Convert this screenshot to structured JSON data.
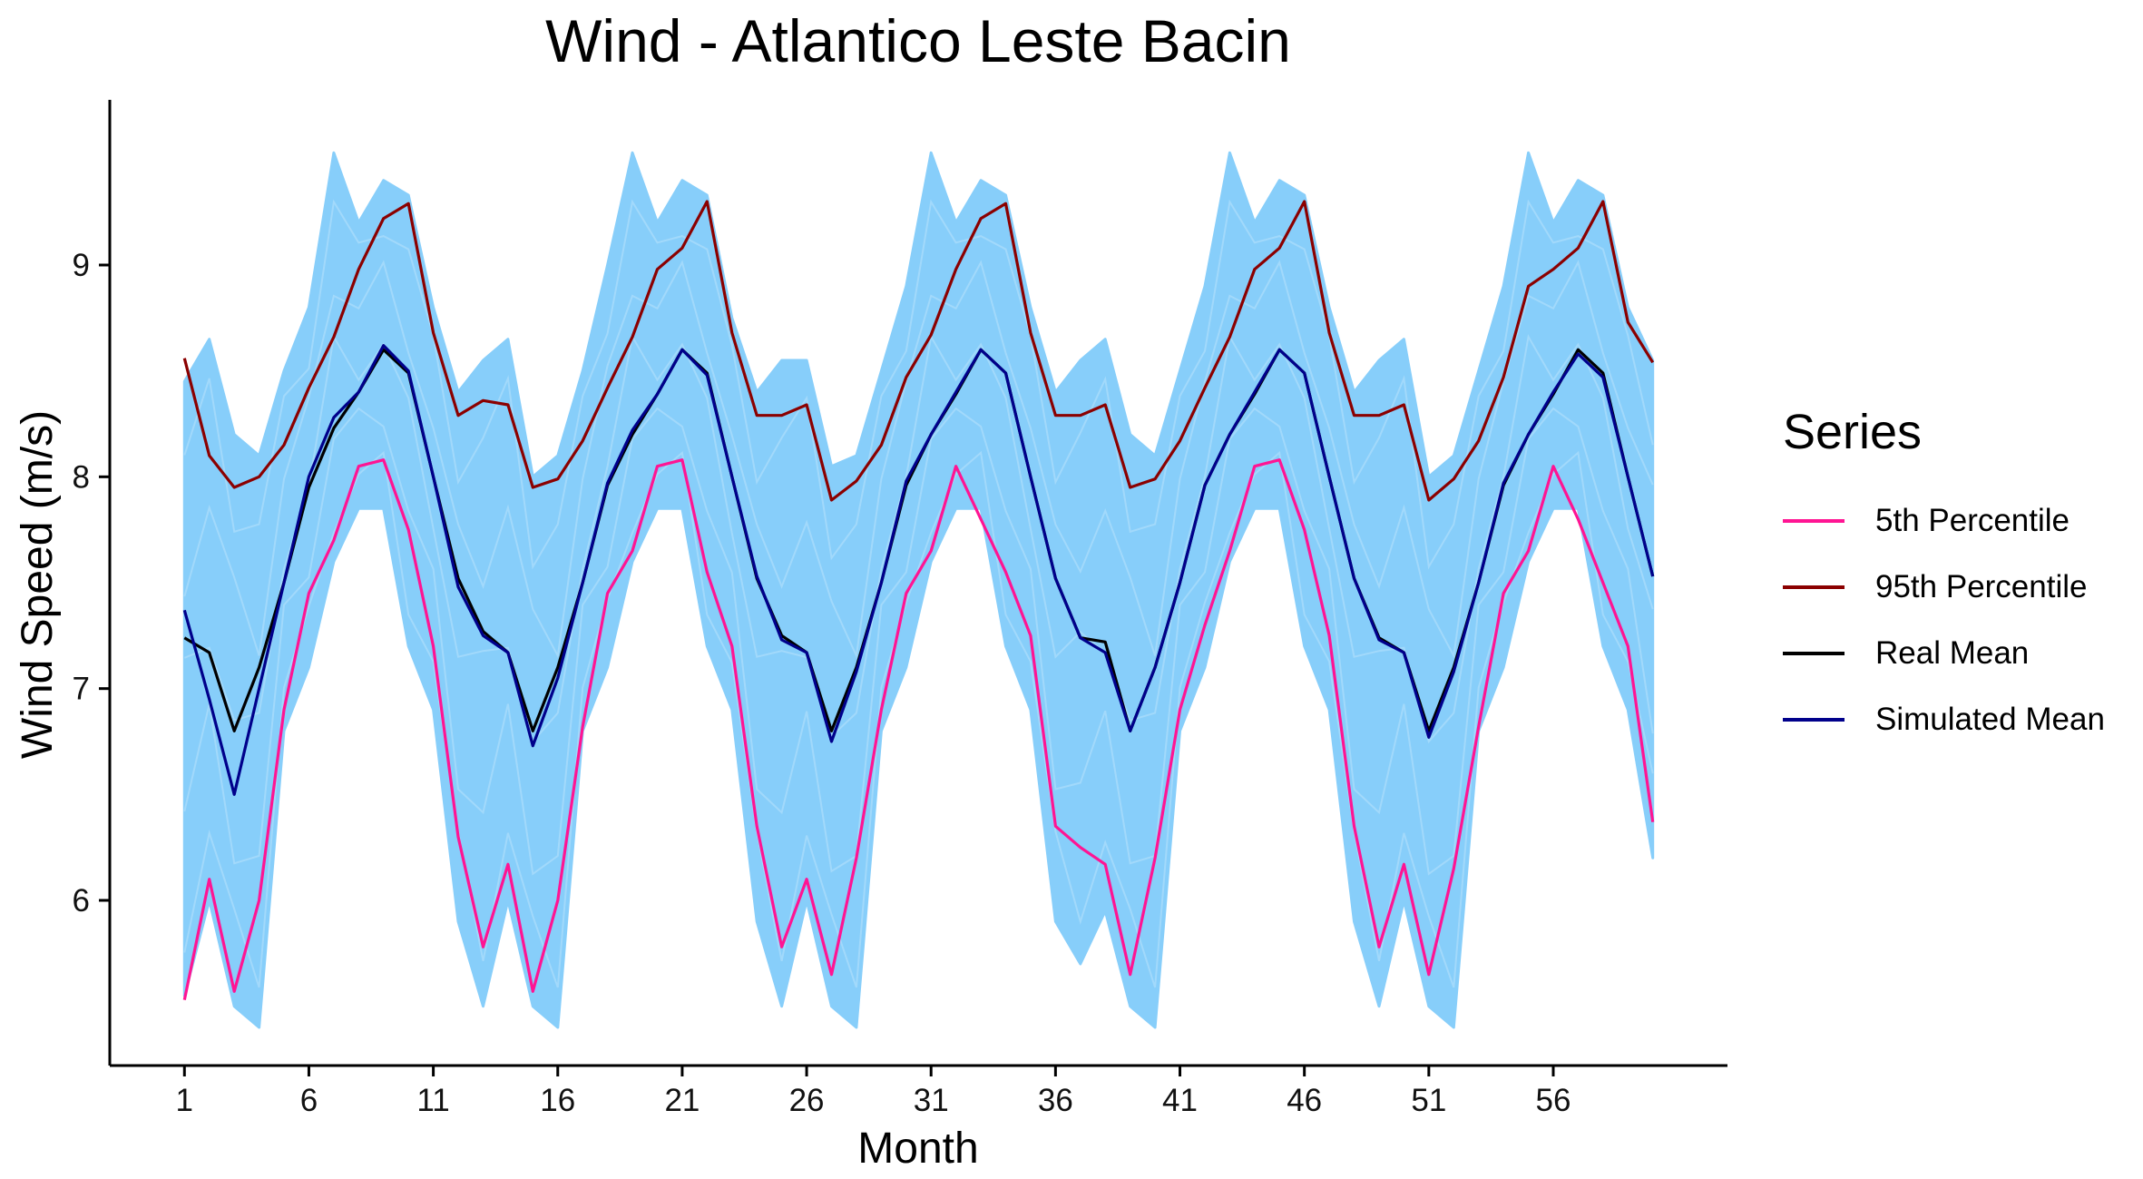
{
  "chart_data": {
    "type": "line",
    "title": "Wind - Atlantico Leste Bacin",
    "xlabel": "Month",
    "ylabel": "Wind Speed (m/s)",
    "xlim": [
      -2,
      63
    ],
    "ylim": [
      5.22,
      9.78
    ],
    "x_ticks": [
      1,
      6,
      11,
      16,
      21,
      26,
      31,
      36,
      41,
      46,
      51,
      56
    ],
    "y_ticks": [
      6,
      7,
      8,
      9
    ],
    "grid": false,
    "legend_position": "right",
    "legend_title": "Series",
    "band": {
      "color": "#87CEFA",
      "description_of_values": "envelope of simulated series",
      "upper": [
        8.45,
        8.65,
        8.2,
        8.1,
        8.5,
        8.8,
        9.53,
        9.2,
        9.4,
        9.33,
        8.8,
        8.4,
        8.55,
        8.65,
        8.0,
        8.1,
        8.5,
        9.0,
        9.53,
        9.2,
        9.4,
        9.33,
        8.75,
        8.4,
        8.55,
        8.55,
        8.05,
        8.1,
        8.5,
        8.9,
        9.53,
        9.2,
        9.4,
        9.33,
        8.8,
        8.4,
        8.55,
        8.65,
        8.2,
        8.1,
        8.5,
        8.9,
        9.53,
        9.2,
        9.4,
        9.33,
        8.8,
        8.4,
        8.55,
        8.65,
        8.0,
        8.1,
        8.5,
        8.9,
        9.53,
        9.2,
        9.4,
        9.33,
        8.8,
        8.55
      ],
      "lower": [
        5.55,
        6.0,
        5.5,
        5.4,
        6.8,
        7.1,
        7.6,
        7.85,
        7.85,
        7.2,
        6.9,
        5.9,
        5.5,
        6.0,
        5.5,
        5.4,
        6.8,
        7.1,
        7.6,
        7.85,
        7.85,
        7.2,
        6.9,
        5.9,
        5.5,
        6.0,
        5.5,
        5.4,
        6.8,
        7.1,
        7.6,
        7.85,
        7.85,
        7.2,
        6.9,
        5.9,
        5.7,
        5.95,
        5.5,
        5.4,
        6.8,
        7.1,
        7.6,
        7.85,
        7.85,
        7.2,
        6.9,
        5.9,
        5.5,
        6.0,
        5.5,
        5.4,
        6.8,
        7.1,
        7.6,
        7.85,
        7.85,
        7.2,
        6.9,
        6.2
      ]
    },
    "x": [
      1,
      2,
      3,
      4,
      5,
      6,
      7,
      8,
      9,
      10,
      11,
      12,
      13,
      14,
      15,
      16,
      17,
      18,
      19,
      20,
      21,
      22,
      23,
      24,
      25,
      26,
      27,
      28,
      29,
      30,
      31,
      32,
      33,
      34,
      35,
      36,
      37,
      38,
      39,
      40,
      41,
      42,
      43,
      44,
      45,
      46,
      47,
      48,
      49,
      50,
      51,
      52,
      53,
      54,
      55,
      56,
      57,
      58,
      59,
      60
    ],
    "series": [
      {
        "name": "5th Percentile",
        "color": "#FF1493",
        "values": [
          5.53,
          6.1,
          5.57,
          6.0,
          6.9,
          7.45,
          7.7,
          8.05,
          8.08,
          7.75,
          7.2,
          6.3,
          5.78,
          6.17,
          5.57,
          6.0,
          6.82,
          7.45,
          7.65,
          8.05,
          8.08,
          7.55,
          7.2,
          6.35,
          5.78,
          6.1,
          5.65,
          6.2,
          6.9,
          7.45,
          7.65,
          8.05,
          7.8,
          7.55,
          7.25,
          6.35,
          6.25,
          6.17,
          5.65,
          6.2,
          6.9,
          7.3,
          7.65,
          8.05,
          8.08,
          7.75,
          7.25,
          6.35,
          5.78,
          6.17,
          5.65,
          6.15,
          6.82,
          7.45,
          7.65,
          8.05,
          7.8,
          7.5,
          7.2,
          6.37
        ]
      },
      {
        "name": "95th Percentile",
        "color": "#8B0000",
        "values": [
          8.56,
          8.1,
          7.95,
          8.0,
          8.15,
          8.42,
          8.66,
          8.98,
          9.22,
          9.29,
          8.68,
          8.29,
          8.36,
          8.34,
          7.95,
          7.99,
          8.17,
          8.42,
          8.66,
          8.98,
          9.08,
          9.3,
          8.68,
          8.29,
          8.29,
          8.34,
          7.89,
          7.98,
          8.15,
          8.47,
          8.67,
          8.98,
          9.22,
          9.29,
          8.68,
          8.29,
          8.29,
          8.34,
          7.95,
          7.99,
          8.17,
          8.42,
          8.66,
          8.98,
          9.08,
          9.3,
          8.68,
          8.29,
          8.29,
          8.34,
          7.89,
          7.99,
          8.17,
          8.47,
          8.9,
          8.98,
          9.08,
          9.3,
          8.73,
          8.54
        ]
      },
      {
        "name": "Real Mean",
        "color": "#000000",
        "values": [
          7.24,
          7.17,
          6.8,
          7.1,
          7.5,
          7.95,
          8.23,
          8.4,
          8.6,
          8.49,
          8.0,
          7.52,
          7.27,
          7.17,
          6.8,
          7.1,
          7.5,
          7.96,
          8.2,
          8.39,
          8.6,
          8.49,
          8.0,
          7.52,
          7.25,
          7.17,
          6.8,
          7.1,
          7.5,
          7.96,
          8.2,
          8.39,
          8.6,
          8.49,
          8.0,
          7.52,
          7.24,
          7.22,
          6.8,
          7.1,
          7.5,
          7.96,
          8.2,
          8.39,
          8.6,
          8.49,
          8.0,
          7.52,
          7.24,
          7.17,
          6.8,
          7.1,
          7.5,
          7.96,
          8.2,
          8.39,
          8.6,
          8.49,
          8.0,
          7.53
        ]
      },
      {
        "name": "Simulated Mean",
        "color": "#00008B",
        "values": [
          7.37,
          6.95,
          6.5,
          7.0,
          7.5,
          8.0,
          8.28,
          8.4,
          8.62,
          8.5,
          8.0,
          7.48,
          7.25,
          7.17,
          6.73,
          7.05,
          7.5,
          7.97,
          8.22,
          8.39,
          8.6,
          8.48,
          8.0,
          7.53,
          7.23,
          7.17,
          6.75,
          7.08,
          7.5,
          7.98,
          8.2,
          8.4,
          8.6,
          8.49,
          8.0,
          7.52,
          7.24,
          7.17,
          6.8,
          7.1,
          7.5,
          7.96,
          8.2,
          8.4,
          8.6,
          8.49,
          8.0,
          7.52,
          7.23,
          7.17,
          6.77,
          7.08,
          7.5,
          7.97,
          8.2,
          8.4,
          8.58,
          8.47,
          8.0,
          7.53
        ]
      }
    ]
  },
  "legend": {
    "title": "Series",
    "items": [
      {
        "label": "5th Percentile",
        "color": "#FF1493"
      },
      {
        "label": "95th Percentile",
        "color": "#8B0000"
      },
      {
        "label": "Real Mean",
        "color": "#000000"
      },
      {
        "label": "Simulated Mean",
        "color": "#00008B"
      }
    ]
  }
}
